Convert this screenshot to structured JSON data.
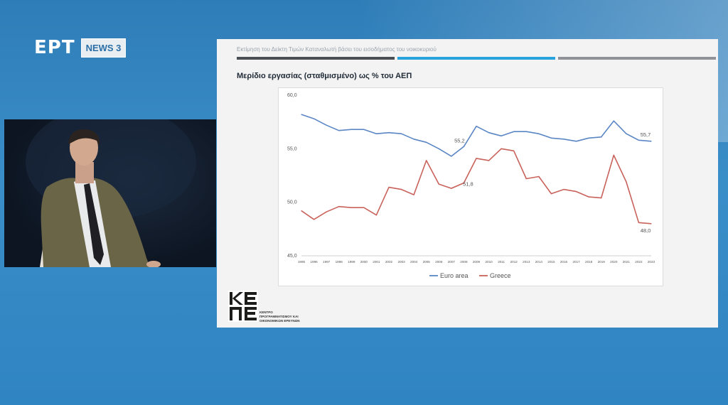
{
  "broadcast": {
    "channel": "ΕΡΤ",
    "subchannel": "NEWS 3"
  },
  "slide": {
    "header": "Εκτίμηση του Δείκτη Τιμών Καταναλωτή βάσει του εισοδήματος του νοικοκυριού",
    "title": "Μερίδιο εργασίας (σταθμισμένο) ως % του ΑΕΠ",
    "institution_lines": [
      "ΚΕΝΤΡΟ",
      "ΠΡΟΓΡΑΜΜΑΤΙΣΜΟΥ ΚΑΙ",
      "ΟΙΚΟΝΟΜΙΚΩΝ ΕΡΕΥΝΩΝ"
    ]
  },
  "chart_data": {
    "type": "line",
    "title": "Μερίδιο εργασίας (σταθμισμένο) ως % του ΑΕΠ",
    "xlabel": "",
    "ylabel": "",
    "ylim": [
      45,
      60
    ],
    "y_ticks": [
      "60,0",
      "55,0",
      "50,0",
      "45,0"
    ],
    "y_tick_values": [
      60,
      55,
      50,
      45
    ],
    "grid": false,
    "legend_position": "bottom",
    "x": [
      "1995",
      "1996",
      "1997",
      "1998",
      "1999",
      "2000",
      "2001",
      "2002",
      "2003",
      "2004",
      "2005",
      "2006",
      "2007",
      "2008",
      "2009",
      "2010",
      "2011",
      "2012",
      "2013",
      "2014",
      "2015",
      "2016",
      "2017",
      "2018",
      "2019",
      "2020",
      "2021",
      "2022",
      "2023"
    ],
    "series": [
      {
        "name": "Euro area",
        "color": "#5b86c4",
        "values": [
          58.2,
          57.8,
          57.2,
          56.7,
          56.8,
          56.8,
          56.4,
          56.5,
          56.4,
          55.9,
          55.6,
          55.0,
          54.3,
          55.2,
          57.1,
          56.5,
          56.2,
          56.6,
          56.6,
          56.4,
          56.0,
          55.9,
          55.7,
          56.0,
          56.1,
          57.6,
          56.4,
          55.8,
          55.7
        ]
      },
      {
        "name": "Greece",
        "color": "#c9625b",
        "values": [
          49.2,
          48.4,
          49.1,
          49.6,
          49.5,
          49.5,
          48.8,
          51.4,
          51.2,
          50.7,
          53.9,
          51.7,
          51.3,
          51.8,
          54.1,
          53.9,
          55.0,
          54.8,
          52.2,
          52.4,
          50.8,
          51.2,
          51.0,
          50.5,
          50.4,
          54.4,
          51.9,
          48.1,
          48.0
        ]
      }
    ],
    "data_labels": [
      {
        "series": 0,
        "index": 13,
        "text": "55,2"
      },
      {
        "series": 0,
        "index": 28,
        "text": "55,7"
      },
      {
        "series": 1,
        "index": 13,
        "text": "51,8"
      },
      {
        "series": 1,
        "index": 28,
        "text": "48,0"
      }
    ]
  }
}
